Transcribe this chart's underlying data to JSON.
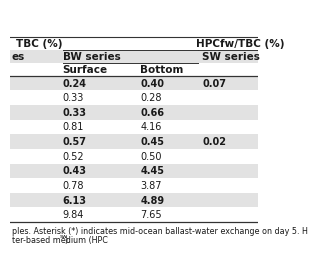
{
  "header1": "TBC (%)",
  "header2": "HPCfw/TBC (%)",
  "subheader_bw": "BW series",
  "subheader_sw": "SW series",
  "col_surface": "Surface",
  "col_bottom": "Bottom",
  "left_col_text": [
    "es",
    "",
    "",
    "",
    "",
    "",
    "",
    "",
    "",
    "",
    "",
    ""
  ],
  "rows": [
    {
      "surface": "0.24",
      "bottom": "0.40",
      "sw": "0.07",
      "shaded": true
    },
    {
      "surface": "0.33",
      "bottom": "0.28",
      "sw": "",
      "shaded": false
    },
    {
      "surface": "0.33",
      "bottom": "0.66",
      "sw": "",
      "shaded": true
    },
    {
      "surface": "0.81",
      "bottom": "4.16",
      "sw": "",
      "shaded": false
    },
    {
      "surface": "0.57",
      "bottom": "0.45",
      "sw": "0.02",
      "shaded": true
    },
    {
      "surface": "0.52",
      "bottom": "0.50",
      "sw": "",
      "shaded": false
    },
    {
      "surface": "0.43",
      "bottom": "4.45",
      "sw": "",
      "shaded": true
    },
    {
      "surface": "0.78",
      "bottom": "3.87",
      "sw": "",
      "shaded": false
    },
    {
      "surface": "6.13",
      "bottom": "4.89",
      "sw": "",
      "shaded": true
    },
    {
      "surface": "9.84",
      "bottom": "7.65",
      "sw": "",
      "shaded": false
    }
  ],
  "footnote1": "ples. Asterisk (*) indicates mid-ocean ballast-water exchange on day 5. H",
  "footnote2": "ter-based medium (HPC",
  "footnote2b": ").",
  "bg_color": "#ffffff",
  "shaded_color": "#e2e2e2",
  "border_color": "#333333",
  "text_color": "#1a1a1a",
  "font_size": 7.0,
  "header_font_size": 7.5,
  "footnote_font_size": 5.8
}
